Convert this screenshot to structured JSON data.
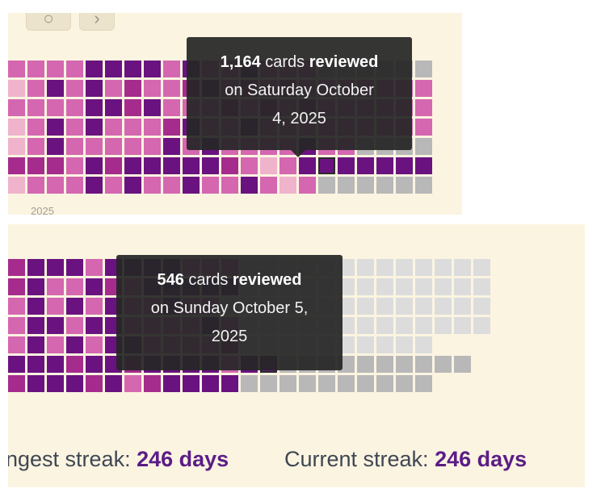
{
  "colors": {
    "level_4": "#6a1280",
    "level_3": "#a52c8c",
    "level_2": "#d467b0",
    "level_1": "#f0b3cc",
    "empty_past": "#dcdcdc",
    "future": "#b8b8b8",
    "panel_bg": "#fbf4e1",
    "accent_text": "#5b1d86"
  },
  "header_buttons": [
    {
      "icon": "refresh-icon",
      "glyph": "○"
    },
    {
      "icon": "chevron-right-icon",
      "glyph": "›"
    }
  ],
  "year_label": "2025",
  "tooltips": [
    {
      "count": "1,164",
      "text_cards": "cards",
      "text_reviewed": "reviewed",
      "line2": "on Saturday October",
      "line3": "4, 2025"
    },
    {
      "count": "546",
      "text_cards": "cards",
      "text_reviewed": "reviewed",
      "line2": "on Sunday October 5,",
      "line3": "2025"
    }
  ],
  "streaks": {
    "longest_label": "ngest streak:",
    "longest_value": "246 days",
    "current_label": "Current streak:",
    "current_value": "246 days"
  },
  "heatmap_top": {
    "legend": "4=darkest review count level, 3,2,1 lighter, 0=no reviews, F=future day, S=selected day, X=no cell",
    "rows": [
      "2222444424224222000000",
      "1242423223423232222222",
      "2222443422232323222222",
      "1242422234224222222222",
      "1242222242422224220000",
      "3332434444432124S44444",
      "1222424224224212000000"
    ]
  },
  "heatmap_bottom": {
    "legend": "4=darkest review count level, 3,2,1 lighter, 0=no reviews, F=future day, S=selected day, X=no cell",
    "rows": [
      "3444244442220000000000000",
      "3422432444440000000000000",
      "2424242242200000000000000",
      "2442442222420000000000000",
      "2424244222230000000000X",
      "4443443444424S0000000000X",
      "3444342344440000000000X"
    ]
  }
}
